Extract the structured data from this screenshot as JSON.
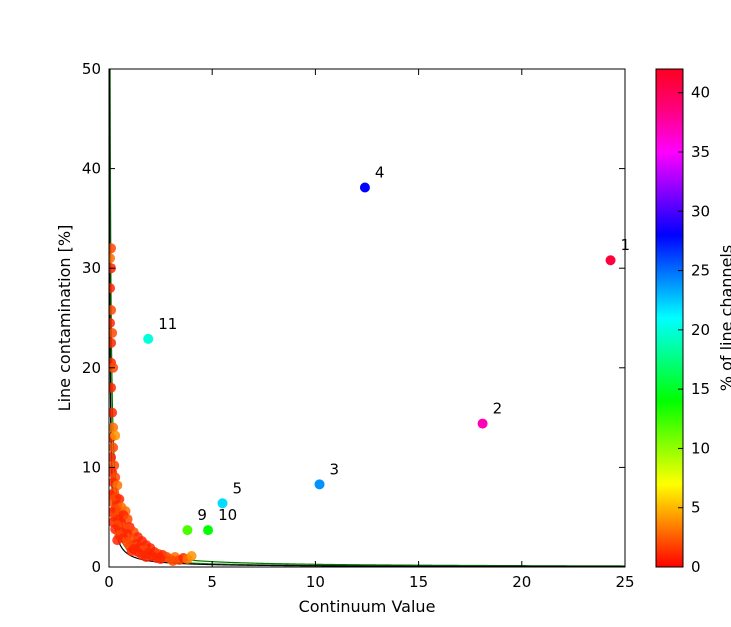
{
  "chart_data": {
    "type": "scatter",
    "title": "",
    "xlabel": "Continuum Value",
    "ylabel": "Line contamination [%]",
    "xlim": [
      0,
      25
    ],
    "ylim": [
      0,
      50
    ],
    "xticks": [
      0,
      5,
      10,
      15,
      20,
      25
    ],
    "yticks": [
      0,
      10,
      20,
      30,
      40,
      50
    ],
    "grid": false,
    "colorbar": {
      "label": "% of line channels",
      "range": [
        0,
        42
      ],
      "ticks": [
        0,
        5,
        10,
        15,
        20,
        25,
        30,
        35,
        40
      ],
      "colormap": "gist_rainbow_r",
      "stops": [
        "#ff0000",
        "#ff8000",
        "#ffff00",
        "#80ff00",
        "#00ff00",
        "#00ff80",
        "#00ffff",
        "#0080ff",
        "#0000ff",
        "#8000ff",
        "#ff00ff",
        "#ff0080",
        "#ff0020"
      ]
    },
    "labeled_points": [
      {
        "label": "1",
        "x": 24.3,
        "y": 30.8,
        "pct": 41
      },
      {
        "label": "2",
        "x": 18.1,
        "y": 14.4,
        "pct": 37
      },
      {
        "label": "3",
        "x": 10.2,
        "y": 8.3,
        "pct": 24
      },
      {
        "label": "4",
        "x": 12.4,
        "y": 38.1,
        "pct": 28
      },
      {
        "label": "5",
        "x": 5.5,
        "y": 6.4,
        "pct": 22
      },
      {
        "label": "9",
        "x": 3.8,
        "y": 3.7,
        "pct": 12
      },
      {
        "label": "10",
        "x": 4.8,
        "y": 3.7,
        "pct": 14
      },
      {
        "label": "11",
        "x": 1.9,
        "y": 22.9,
        "pct": 20
      }
    ],
    "points": [
      {
        "x": 0.1,
        "y": 32.0,
        "pct": 2
      },
      {
        "x": 0.05,
        "y": 31.0,
        "pct": 3
      },
      {
        "x": 0.1,
        "y": 30.0,
        "pct": 1
      },
      {
        "x": 0.05,
        "y": 28.0,
        "pct": 1
      },
      {
        "x": 0.1,
        "y": 25.8,
        "pct": 2
      },
      {
        "x": 0.05,
        "y": 24.5,
        "pct": 1
      },
      {
        "x": 0.15,
        "y": 23.5,
        "pct": 2
      },
      {
        "x": 0.1,
        "y": 22.5,
        "pct": 1
      },
      {
        "x": 0.1,
        "y": 20.5,
        "pct": 1
      },
      {
        "x": 0.2,
        "y": 20.0,
        "pct": 2
      },
      {
        "x": 0.1,
        "y": 18.0,
        "pct": 1
      },
      {
        "x": 0.15,
        "y": 15.5,
        "pct": 1
      },
      {
        "x": 0.2,
        "y": 14.0,
        "pct": 3
      },
      {
        "x": 0.1,
        "y": 13.0,
        "pct": 1
      },
      {
        "x": 0.3,
        "y": 13.2,
        "pct": 4
      },
      {
        "x": 0.2,
        "y": 12.0,
        "pct": 2
      },
      {
        "x": 0.1,
        "y": 11.0,
        "pct": 1
      },
      {
        "x": 0.25,
        "y": 10.2,
        "pct": 2
      },
      {
        "x": 0.15,
        "y": 9.5,
        "pct": 1
      },
      {
        "x": 0.3,
        "y": 9.0,
        "pct": 2
      },
      {
        "x": 0.2,
        "y": 8.5,
        "pct": 1
      },
      {
        "x": 0.4,
        "y": 8.2,
        "pct": 3
      },
      {
        "x": 0.25,
        "y": 7.5,
        "pct": 2
      },
      {
        "x": 0.1,
        "y": 7.2,
        "pct": 1
      },
      {
        "x": 0.35,
        "y": 7.0,
        "pct": 2
      },
      {
        "x": 0.5,
        "y": 6.8,
        "pct": 1
      },
      {
        "x": 0.2,
        "y": 6.5,
        "pct": 2
      },
      {
        "x": 0.4,
        "y": 6.2,
        "pct": 1
      },
      {
        "x": 0.6,
        "y": 6.0,
        "pct": 3
      },
      {
        "x": 0.3,
        "y": 5.8,
        "pct": 2
      },
      {
        "x": 0.15,
        "y": 5.5,
        "pct": 1
      },
      {
        "x": 0.5,
        "y": 5.5,
        "pct": 2
      },
      {
        "x": 0.8,
        "y": 5.6,
        "pct": 3
      },
      {
        "x": 0.7,
        "y": 5.2,
        "pct": 1
      },
      {
        "x": 0.3,
        "y": 5.0,
        "pct": 2
      },
      {
        "x": 0.5,
        "y": 4.8,
        "pct": 1
      },
      {
        "x": 0.9,
        "y": 4.8,
        "pct": 2
      },
      {
        "x": 0.2,
        "y": 4.5,
        "pct": 1
      },
      {
        "x": 0.6,
        "y": 4.4,
        "pct": 1
      },
      {
        "x": 0.4,
        "y": 4.2,
        "pct": 2
      },
      {
        "x": 1.0,
        "y": 4.0,
        "pct": 1
      },
      {
        "x": 0.8,
        "y": 3.8,
        "pct": 2
      },
      {
        "x": 0.3,
        "y": 3.8,
        "pct": 1
      },
      {
        "x": 0.6,
        "y": 3.5,
        "pct": 1
      },
      {
        "x": 1.2,
        "y": 3.5,
        "pct": 2
      },
      {
        "x": 0.9,
        "y": 3.3,
        "pct": 1
      },
      {
        "x": 0.5,
        "y": 3.2,
        "pct": 2
      },
      {
        "x": 1.4,
        "y": 3.0,
        "pct": 1
      },
      {
        "x": 0.7,
        "y": 2.9,
        "pct": 1
      },
      {
        "x": 1.1,
        "y": 2.8,
        "pct": 2
      },
      {
        "x": 0.4,
        "y": 2.7,
        "pct": 1
      },
      {
        "x": 1.6,
        "y": 2.6,
        "pct": 1
      },
      {
        "x": 0.9,
        "y": 2.5,
        "pct": 2
      },
      {
        "x": 1.3,
        "y": 2.3,
        "pct": 1
      },
      {
        "x": 1.8,
        "y": 2.2,
        "pct": 1
      },
      {
        "x": 1.0,
        "y": 2.1,
        "pct": 2
      },
      {
        "x": 1.5,
        "y": 2.0,
        "pct": 1
      },
      {
        "x": 2.0,
        "y": 1.9,
        "pct": 1
      },
      {
        "x": 1.2,
        "y": 1.8,
        "pct": 1
      },
      {
        "x": 1.7,
        "y": 1.7,
        "pct": 2
      },
      {
        "x": 2.2,
        "y": 1.5,
        "pct": 1
      },
      {
        "x": 1.4,
        "y": 1.5,
        "pct": 1
      },
      {
        "x": 1.9,
        "y": 1.4,
        "pct": 1
      },
      {
        "x": 2.4,
        "y": 1.3,
        "pct": 2
      },
      {
        "x": 1.1,
        "y": 1.6,
        "pct": 1
      },
      {
        "x": 2.6,
        "y": 1.2,
        "pct": 1
      },
      {
        "x": 2.1,
        "y": 1.1,
        "pct": 1
      },
      {
        "x": 2.8,
        "y": 1.0,
        "pct": 2
      },
      {
        "x": 1.6,
        "y": 1.2,
        "pct": 1
      },
      {
        "x": 2.3,
        "y": 0.9,
        "pct": 1
      },
      {
        "x": 1.8,
        "y": 1.0,
        "pct": 1
      },
      {
        "x": 3.0,
        "y": 0.8,
        "pct": 2
      },
      {
        "x": 3.2,
        "y": 1.0,
        "pct": 3
      },
      {
        "x": 3.4,
        "y": 0.7,
        "pct": 2
      },
      {
        "x": 3.6,
        "y": 0.9,
        "pct": 1
      },
      {
        "x": 3.8,
        "y": 0.8,
        "pct": 3
      },
      {
        "x": 4.0,
        "y": 1.1,
        "pct": 4
      },
      {
        "x": 3.1,
        "y": 0.6,
        "pct": 2
      },
      {
        "x": 2.5,
        "y": 0.8,
        "pct": 1
      }
    ],
    "curves": [
      {
        "color": "#007700",
        "k": 2.7
      },
      {
        "color": "#2a8a2a",
        "k": 1.6
      },
      {
        "color": "#000000",
        "k": 1.2
      }
    ]
  }
}
